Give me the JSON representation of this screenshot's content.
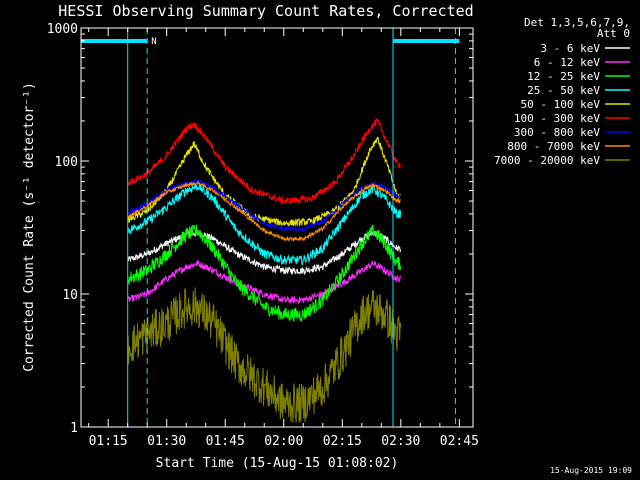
{
  "chart_data": {
    "type": "line",
    "title": "HESSI Observing Summary Count Rates, Corrected",
    "xlabel": "Start Time (15-Aug-15 01:08:02)",
    "ylabel": "Corrected Count Rate (s⁻¹ detector⁻¹)",
    "y_scale": "log",
    "ylim": [
      1,
      1000
    ],
    "xlim": [
      "01:08:02",
      "02:48:30"
    ],
    "x_ticks": [
      "01:15",
      "01:30",
      "01:45",
      "02:00",
      "02:15",
      "02:30",
      "02:45"
    ],
    "y_ticks": [
      "1",
      "10",
      "100",
      "1000"
    ],
    "legend_header": [
      "Det 1,3,5,6,7,9,",
      "Att 0"
    ],
    "legend_position": "right",
    "timestamp": "15-Aug-2015 19:09",
    "annotation_N": "N",
    "colors": {
      "axes": "#ffffff",
      "saa_marker": "#00e5ff"
    },
    "data_start": "01:20:00",
    "data_end": "02:30:00",
    "saa_bars": [
      [
        "01:08:02",
        "01:25:00"
      ],
      [
        "02:28:00",
        "02:45:00"
      ]
    ],
    "dashed_lines": [
      "01:25:00",
      "02:44:00"
    ],
    "solid_lines": [
      "01:20:00",
      "02:28:00"
    ],
    "series": [
      {
        "name": "3 - 6 keV",
        "color": "#ffffff",
        "noise": 0.06,
        "x": [
          "01:20",
          "01:25",
          "01:30",
          "01:35",
          "01:38",
          "01:42",
          "01:48",
          "01:55",
          "02:00",
          "02:05",
          "02:10",
          "02:15",
          "02:20",
          "02:23",
          "02:26",
          "02:29"
        ],
        "values": [
          18,
          20,
          24,
          28,
          29,
          26,
          20,
          16,
          15,
          15,
          16,
          20,
          26,
          29,
          26,
          22
        ]
      },
      {
        "name": "6 - 12 keV",
        "color": "#ff2cff",
        "noise": 0.06,
        "x": [
          "01:20",
          "01:25",
          "01:30",
          "01:35",
          "01:38",
          "01:42",
          "01:48",
          "01:55",
          "02:00",
          "02:05",
          "02:10",
          "02:15",
          "02:20",
          "02:23",
          "02:26",
          "02:29"
        ],
        "values": [
          9,
          10,
          13,
          16,
          17,
          15,
          12,
          10,
          9,
          9,
          10,
          12,
          15,
          17,
          15,
          13
        ]
      },
      {
        "name": "12 - 25 keV",
        "color": "#00ff00",
        "noise": 0.12,
        "x": [
          "01:20",
          "01:25",
          "01:30",
          "01:35",
          "01:38",
          "01:42",
          "01:48",
          "01:55",
          "02:00",
          "02:05",
          "02:10",
          "02:15",
          "02:20",
          "02:23",
          "02:26",
          "02:29"
        ],
        "values": [
          13,
          15,
          20,
          28,
          30,
          22,
          12,
          8,
          7,
          7,
          9,
          14,
          24,
          30,
          24,
          17
        ]
      },
      {
        "name": "25 - 50 keV",
        "color": "#00ffff",
        "noise": 0.08,
        "x": [
          "01:20",
          "01:25",
          "01:30",
          "01:35",
          "01:38",
          "01:42",
          "01:48",
          "01:55",
          "02:00",
          "02:05",
          "02:10",
          "02:15",
          "02:20",
          "02:23",
          "02:26",
          "02:29"
        ],
        "values": [
          30,
          35,
          45,
          60,
          65,
          52,
          30,
          20,
          18,
          18,
          22,
          35,
          55,
          62,
          52,
          40
        ]
      },
      {
        "name": "50 - 100 keV",
        "color": "#e6e600",
        "noise": 0.06,
        "x": [
          "01:20",
          "01:25",
          "01:30",
          "01:35",
          "01:37",
          "01:40",
          "01:45",
          "01:52",
          "02:00",
          "02:07",
          "02:13",
          "02:18",
          "02:22",
          "02:24",
          "02:27",
          "02:29"
        ],
        "values": [
          36,
          42,
          60,
          110,
          135,
          90,
          55,
          38,
          34,
          35,
          42,
          60,
          120,
          150,
          85,
          55
        ]
      },
      {
        "name": "100 - 300 keV",
        "color": "#ff0000",
        "noise": 0.06,
        "x": [
          "01:20",
          "01:25",
          "01:30",
          "01:35",
          "01:37",
          "01:40",
          "01:45",
          "01:52",
          "02:00",
          "02:07",
          "02:13",
          "02:18",
          "02:22",
          "02:24",
          "02:27",
          "02:29"
        ],
        "values": [
          68,
          80,
          110,
          175,
          190,
          150,
          90,
          60,
          50,
          52,
          68,
          110,
          175,
          200,
          130,
          95
        ]
      },
      {
        "name": "300 - 800 keV",
        "color": "#0000ff",
        "noise": 0.04,
        "x": [
          "01:20",
          "01:25",
          "01:30",
          "01:35",
          "01:38",
          "01:42",
          "01:48",
          "01:55",
          "02:00",
          "02:05",
          "02:10",
          "02:15",
          "02:20",
          "02:23",
          "02:26",
          "02:29"
        ],
        "values": [
          40,
          48,
          60,
          68,
          70,
          63,
          47,
          34,
          31,
          31,
          35,
          48,
          62,
          68,
          63,
          55
        ]
      },
      {
        "name": "800 - 7000 keV",
        "color": "#ff8c00",
        "noise": 0.03,
        "x": [
          "01:20",
          "01:25",
          "01:30",
          "01:35",
          "01:38",
          "01:42",
          "01:48",
          "01:55",
          "02:00",
          "02:05",
          "02:10",
          "02:15",
          "02:20",
          "02:23",
          "02:26",
          "02:29"
        ],
        "values": [
          38,
          46,
          58,
          66,
          68,
          60,
          44,
          30,
          26,
          26,
          31,
          45,
          60,
          66,
          60,
          50
        ]
      },
      {
        "name": "7000 - 20000 keV",
        "color": "#808000",
        "noise": 0.35,
        "x": [
          "01:20",
          "01:25",
          "01:30",
          "01:35",
          "01:38",
          "01:42",
          "01:48",
          "01:55",
          "02:00",
          "02:05",
          "02:10",
          "02:15",
          "02:20",
          "02:23",
          "02:26",
          "02:29"
        ],
        "values": [
          4,
          5,
          6,
          8,
          8,
          6,
          3,
          2,
          1.5,
          1.5,
          2,
          3.5,
          7,
          8,
          7,
          5
        ]
      }
    ]
  }
}
